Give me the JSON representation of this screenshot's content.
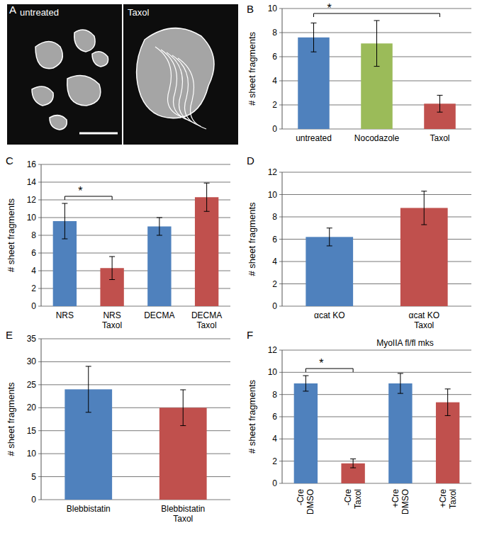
{
  "images": {
    "label": "A",
    "panels": [
      {
        "label": "untreated"
      },
      {
        "label": "Taxol"
      }
    ]
  },
  "chart_data": [
    {
      "type": "bar",
      "annotations": [
        "B"
      ],
      "y_label": "# sheet fragments",
      "categories": [
        "untreated",
        "Nocodazole",
        "Taxol"
      ],
      "values": [
        7.6,
        7.1,
        2.1
      ],
      "errors": [
        1.2,
        1.9,
        0.7
      ],
      "colors": [
        "#4f81bd",
        "#9bbb59",
        "#c0504d"
      ],
      "ylim": [
        0,
        10
      ],
      "yticks": [
        0,
        2,
        4,
        6,
        8,
        10
      ],
      "grid": true,
      "significance": [
        {
          "from": 0,
          "to": 2,
          "label": "*"
        }
      ]
    },
    {
      "type": "bar",
      "annotations": [
        "C"
      ],
      "y_label": "# sheet fragments",
      "categories": [
        "NRS",
        "NRS\nTaxol",
        "DECMA",
        "DECMA\nTaxol"
      ],
      "values": [
        9.6,
        4.3,
        9.0,
        12.3
      ],
      "errors": [
        2.0,
        1.3,
        1.0,
        1.6
      ],
      "colors": [
        "#4f81bd",
        "#c0504d",
        "#4f81bd",
        "#c0504d"
      ],
      "ylim": [
        0,
        16
      ],
      "yticks": [
        0,
        2,
        4,
        6,
        8,
        10,
        12,
        14,
        16
      ],
      "grid": true,
      "significance": [
        {
          "from": 0,
          "to": 1,
          "label": "*"
        }
      ]
    },
    {
      "type": "bar",
      "annotations": [
        "D"
      ],
      "y_label": "# sheet fragments",
      "categories": [
        "αcat KO",
        "αcat KO\nTaxol"
      ],
      "values": [
        6.2,
        8.8
      ],
      "errors": [
        0.8,
        1.5
      ],
      "colors": [
        "#4f81bd",
        "#c0504d"
      ],
      "ylim": [
        0,
        12
      ],
      "yticks": [
        0,
        2,
        4,
        6,
        8,
        10,
        12
      ],
      "grid": true
    },
    {
      "type": "bar",
      "annotations": [
        "E"
      ],
      "y_label": "# sheet fragments",
      "categories": [
        "Blebbistatin",
        "Blebbistatin\nTaxol"
      ],
      "values": [
        24,
        20
      ],
      "errors": [
        5,
        3.9
      ],
      "colors": [
        "#4f81bd",
        "#c0504d"
      ],
      "ylim": [
        0,
        35
      ],
      "yticks": [
        0,
        5,
        10,
        15,
        20,
        25,
        30,
        35
      ],
      "grid": true
    },
    {
      "type": "bar",
      "annotations": [
        "F"
      ],
      "title": "MyoIIA fl/fl mks",
      "y_label": "# sheet fragments",
      "categories": [
        "-Cre\nDMSO",
        "-Cre\nTaxol",
        "+Cre\nDMSO",
        "+Cre\nTaxol"
      ],
      "values": [
        9.0,
        1.8,
        9.0,
        7.3
      ],
      "errors": [
        0.7,
        0.4,
        0.9,
        1.2
      ],
      "colors": [
        "#4f81bd",
        "#c0504d",
        "#4f81bd",
        "#c0504d"
      ],
      "ylim": [
        0,
        12
      ],
      "yticks": [
        0,
        2,
        4,
        6,
        8,
        10,
        12
      ],
      "grid": true,
      "significance": [
        {
          "from": 0,
          "to": 1,
          "label": "*"
        }
      ]
    }
  ]
}
